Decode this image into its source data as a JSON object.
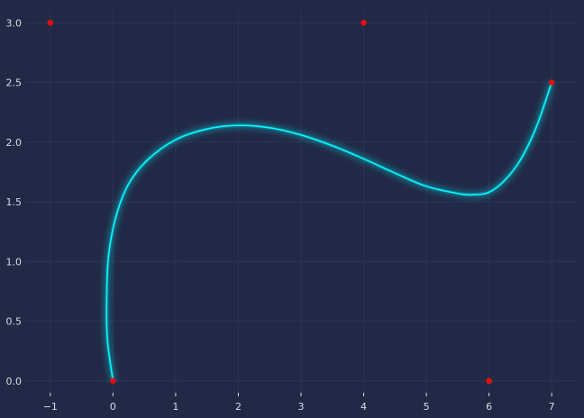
{
  "chart_data": {
    "type": "line",
    "title": "",
    "xlabel": "",
    "ylabel": "",
    "xlim": [
      -1.4,
      7.4
    ],
    "ylim": [
      -0.1,
      3.1
    ],
    "grid": true,
    "legend": "none",
    "x_ticks": [
      -1,
      0,
      1,
      2,
      3,
      4,
      5,
      6,
      7
    ],
    "y_ticks": [
      0.0,
      0.5,
      1.0,
      1.5,
      2.0,
      2.5,
      3.0
    ],
    "x_tick_labels": [
      "−1",
      "0",
      "1",
      "2",
      "3",
      "4",
      "5",
      "6",
      "7"
    ],
    "y_tick_labels": [
      "0.0",
      "0.5",
      "1.0",
      "1.5",
      "2.0",
      "2.5",
      "3.0"
    ],
    "series": [
      {
        "kind": "curve",
        "color": "#08f7fe",
        "x": [
          0,
          -0.09,
          -0.1,
          -0.07,
          0.05,
          0.25,
          0.55,
          1.0,
          1.5,
          2.0,
          2.5,
          3.0,
          3.5,
          4.0,
          4.5,
          5.0,
          5.5,
          5.75,
          6.0,
          6.25,
          6.5,
          6.75,
          7.0
        ],
        "y": [
          0,
          0.35,
          0.7,
          1.05,
          1.38,
          1.65,
          1.85,
          2.02,
          2.11,
          2.14,
          2.12,
          2.06,
          1.97,
          1.86,
          1.74,
          1.63,
          1.57,
          1.56,
          1.58,
          1.68,
          1.85,
          2.12,
          2.5
        ]
      },
      {
        "kind": "points",
        "color": "#e01010",
        "x": [
          0,
          -1,
          4,
          6,
          7
        ],
        "y": [
          0,
          3,
          3,
          0,
          2.5
        ]
      }
    ]
  }
}
